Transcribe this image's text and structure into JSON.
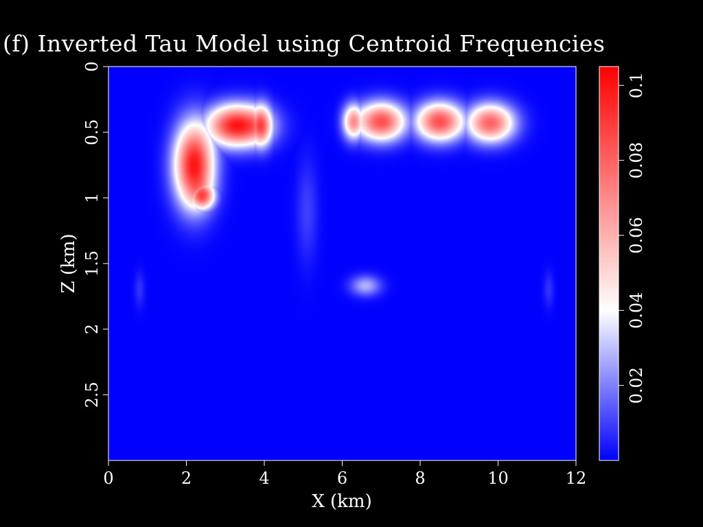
{
  "chart_data": {
    "type": "heatmap",
    "title": "(f) Inverted Tau Model using Centroid Frequencies",
    "xlabel": "X (km)",
    "ylabel": "Z (km)",
    "xlim": [
      0,
      12
    ],
    "ylim": [
      3.0,
      0
    ],
    "x_ticks": [
      "0",
      "2",
      "4",
      "6",
      "8",
      "10",
      "12"
    ],
    "y_ticks": [
      "0",
      "0.5",
      "1",
      "1.5",
      "2",
      "2.5"
    ],
    "colorbar": {
      "range": [
        0,
        0.105
      ],
      "ticks": [
        "0.02",
        "0.04",
        "0.06",
        "0.08",
        "0.1"
      ],
      "colors": {
        "low": "#0000ff",
        "mid": "#ffffff",
        "high": "#ff0000"
      },
      "mid_value": 0.04
    },
    "background_value": 0.0,
    "anomalies": [
      {
        "x": 2.2,
        "z": 0.75,
        "sx": 0.45,
        "sz": 0.28,
        "amp": 0.1
      },
      {
        "x": 3.3,
        "z": 0.45,
        "sx": 0.7,
        "sz": 0.14,
        "amp": 0.1
      },
      {
        "x": 3.9,
        "z": 0.45,
        "sx": 0.28,
        "sz": 0.14,
        "amp": 0.09
      },
      {
        "x": 2.4,
        "z": 0.98,
        "sx": 0.3,
        "sz": 0.1,
        "amp": 0.09
      },
      {
        "x": 7.0,
        "z": 0.42,
        "sx": 0.55,
        "sz": 0.13,
        "amp": 0.085
      },
      {
        "x": 8.5,
        "z": 0.42,
        "sx": 0.55,
        "sz": 0.13,
        "amp": 0.085
      },
      {
        "x": 9.8,
        "z": 0.43,
        "sx": 0.55,
        "sz": 0.13,
        "amp": 0.08
      },
      {
        "x": 6.3,
        "z": 0.42,
        "sx": 0.25,
        "sz": 0.12,
        "amp": 0.07
      },
      {
        "x": 6.6,
        "z": 1.67,
        "sx": 0.35,
        "sz": 0.07,
        "amp": 0.028
      },
      {
        "x": 5.1,
        "z": 1.1,
        "sx": 0.25,
        "sz": 0.35,
        "amp": 0.01
      },
      {
        "x": 0.8,
        "z": 1.7,
        "sx": 0.12,
        "sz": 0.12,
        "amp": 0.008
      },
      {
        "x": 11.3,
        "z": 1.7,
        "sx": 0.12,
        "sz": 0.12,
        "amp": 0.008
      }
    ]
  }
}
